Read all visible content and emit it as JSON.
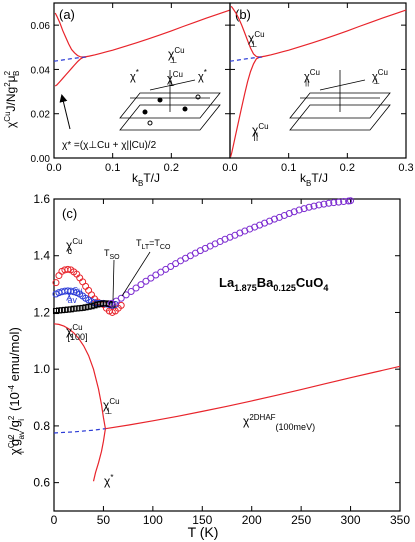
{
  "colors": {
    "red": "#e8242b",
    "blue": "#2b3bd6",
    "purple": "#7b2bd0",
    "black": "#000000"
  },
  "chart_data": [
    {
      "id": "a",
      "type": "line",
      "panel_label": "(a)",
      "xlabel_main": "k",
      "xlabel_sub1": "B",
      "xlabel_rest": "T/J",
      "ylabel_html": "χCuJ/Ng²μB²",
      "ylabel_parts": [
        "χ",
        "Cu",
        "J/Ng",
        "2",
        "μ",
        "2",
        "B"
      ],
      "xlim": [
        0,
        0.3
      ],
      "ylim": [
        0,
        0.07
      ],
      "xticks": [
        "0.0",
        "0.1",
        "0.2"
      ],
      "xtick_values": [
        0.0,
        0.1,
        0.2
      ],
      "yticks": [
        "0.00",
        "0.02",
        "0.04",
        "0.06"
      ],
      "ytick_values": [
        0.0,
        0.02,
        0.04,
        0.06
      ],
      "annotations": {
        "chi_perp": [
          "χ",
          "Cu",
          "⊥"
        ],
        "chi_star": [
          "χ",
          "*"
        ],
        "inset_chi_star": [
          "χ",
          "*"
        ],
        "formula": "χ* =(χ⊥Cu + χ||Cu)/2"
      },
      "series": [
        {
          "color": "red",
          "style": "solid",
          "x": [
            0.002,
            0.005,
            0.01,
            0.015,
            0.02,
            0.025,
            0.03,
            0.035,
            0.04,
            0.045,
            0.05,
            0.055,
            0.06,
            0.07,
            0.08,
            0.09,
            0.1,
            0.12,
            0.14,
            0.16,
            0.18,
            0.2,
            0.22,
            0.24,
            0.26,
            0.28,
            0.3
          ],
          "y": [
            0.0655,
            0.064,
            0.061,
            0.0575,
            0.0545,
            0.0515,
            0.049,
            0.0475,
            0.0463,
            0.0457,
            0.0456,
            0.0458,
            0.046,
            0.0466,
            0.0473,
            0.048,
            0.0487,
            0.0503,
            0.052,
            0.0537,
            0.0555,
            0.0574,
            0.0594,
            0.0613,
            0.0632,
            0.065,
            0.0668
          ]
        },
        {
          "color": "red",
          "style": "solid",
          "x": [
            0.002,
            0.005,
            0.01,
            0.015,
            0.02,
            0.025,
            0.03,
            0.035,
            0.04,
            0.045,
            0.05,
            0.055
          ],
          "y": [
            0.0325,
            0.033,
            0.0345,
            0.036,
            0.0375,
            0.039,
            0.0405,
            0.042,
            0.0435,
            0.0447,
            0.0455,
            0.0456
          ]
        },
        {
          "color": "blue",
          "style": "dashed",
          "x": [
            0.0,
            0.01,
            0.02,
            0.03,
            0.04,
            0.05,
            0.055
          ],
          "y": [
            0.0437,
            0.0441,
            0.0445,
            0.0449,
            0.0452,
            0.0455,
            0.0456
          ]
        }
      ]
    },
    {
      "id": "b",
      "type": "line",
      "panel_label": "(b)",
      "xlabel_main": "k",
      "xlabel_sub1": "B",
      "xlabel_rest": "T/J",
      "xlim": [
        0,
        0.3
      ],
      "ylim": [
        0,
        0.07
      ],
      "xticks": [
        "0.0",
        "0.1",
        "0.2",
        "0.3"
      ],
      "xtick_values": [
        0.0,
        0.1,
        0.2,
        0.3
      ],
      "annotations": {
        "chi_perp": [
          "χ",
          "Cu",
          "⊥"
        ],
        "chi_par": [
          "χ",
          "Cu",
          "||"
        ],
        "inset_chi_perp": [
          "χ",
          "Cu",
          "⊥"
        ]
      },
      "series": [
        {
          "color": "red",
          "style": "solid",
          "x": [
            0.002,
            0.005,
            0.01,
            0.015,
            0.02,
            0.025,
            0.03,
            0.035,
            0.04,
            0.045,
            0.05,
            0.055,
            0.06,
            0.07,
            0.08,
            0.09,
            0.1,
            0.12,
            0.14,
            0.16,
            0.18,
            0.2,
            0.22,
            0.24,
            0.26,
            0.28,
            0.3
          ],
          "y": [
            0.0685,
            0.0675,
            0.0655,
            0.063,
            0.06,
            0.0565,
            0.053,
            0.0497,
            0.047,
            0.0458,
            0.0456,
            0.0458,
            0.046,
            0.0466,
            0.0473,
            0.048,
            0.0487,
            0.0503,
            0.052,
            0.0537,
            0.0555,
            0.0574,
            0.0594,
            0.0613,
            0.0632,
            0.065,
            0.0668
          ]
        },
        {
          "color": "red",
          "style": "solid",
          "x": [
            0.001,
            0.003,
            0.006,
            0.01,
            0.015,
            0.02,
            0.025,
            0.03,
            0.035,
            0.04,
            0.045,
            0.05,
            0.055
          ],
          "y": [
            0.0005,
            0.0025,
            0.006,
            0.011,
            0.017,
            0.023,
            0.029,
            0.0345,
            0.039,
            0.0425,
            0.0448,
            0.0455,
            0.0456
          ]
        },
        {
          "color": "blue",
          "style": "dashed",
          "x": [
            0.0,
            0.01,
            0.02,
            0.03,
            0.04,
            0.05,
            0.055
          ],
          "y": [
            0.0437,
            0.0441,
            0.0445,
            0.0449,
            0.0452,
            0.0455,
            0.0456
          ]
        }
      ]
    },
    {
      "id": "c",
      "type": "scatter",
      "panel_label": "(c)",
      "xlabel": "T  (K)",
      "ylabel_parts": [
        "χ",
        "Cu",
        "i",
        "g",
        "2",
        "av",
        "/g",
        "2",
        "i",
        "(10",
        "-4",
        " emu/mol)"
      ],
      "xlim": [
        0,
        350
      ],
      "ylim": [
        0.5,
        1.6
      ],
      "xticks": [
        "0",
        "50",
        "100",
        "150",
        "200",
        "250",
        "300",
        "350"
      ],
      "xtick_values": [
        0,
        50,
        100,
        150,
        200,
        250,
        300,
        350
      ],
      "yticks": [
        "0.6",
        "0.8",
        "1.0",
        "1.2",
        "1.4",
        "1.6"
      ],
      "ytick_values": [
        0.6,
        0.8,
        1.0,
        1.2,
        1.4,
        1.6
      ],
      "compound": [
        "La",
        "1.875",
        "Ba",
        "0.125",
        "CuO",
        "4"
      ],
      "annotations": {
        "chi_c": [
          "χ",
          "Cu",
          "c"
        ],
        "chi_av": [
          "χ",
          "Cu",
          "av"
        ],
        "chi_100": [
          "χ",
          "Cu",
          "[100]"
        ],
        "t_so": [
          "T",
          "SO"
        ],
        "t_lt_co": [
          "T",
          "LT",
          "=T",
          "CO"
        ],
        "chi_perp": [
          "χ",
          "Cu",
          "⊥"
        ],
        "chi_star": [
          "χ",
          "*"
        ],
        "chi_2dhaf": [
          "χ",
          "2DHAF",
          "(100meV)"
        ]
      },
      "series": [
        {
          "name": "χcCu",
          "marker": "circle",
          "color": "red",
          "x": [
            2,
            5,
            8,
            11,
            14,
            17,
            20,
            23,
            26,
            29,
            32,
            35,
            38,
            41,
            44,
            47,
            50,
            53,
            56,
            59,
            62,
            65,
            68
          ],
          "y": [
            1.305,
            1.33,
            1.345,
            1.35,
            1.352,
            1.35,
            1.343,
            1.335,
            1.322,
            1.308,
            1.292,
            1.278,
            1.262,
            1.248,
            1.237,
            1.232,
            1.228,
            1.215,
            1.205,
            1.2,
            1.205,
            1.215,
            1.225
          ]
        },
        {
          "name": "χavCu",
          "marker": "circle",
          "color": "blue",
          "x": [
            2,
            5,
            8,
            11,
            14,
            17,
            20,
            23,
            26,
            29,
            32,
            35,
            38,
            41,
            44,
            47,
            50,
            53,
            56,
            59,
            62
          ],
          "y": [
            1.265,
            1.27,
            1.273,
            1.275,
            1.276,
            1.275,
            1.273,
            1.27,
            1.265,
            1.258,
            1.25,
            1.244,
            1.238,
            1.234,
            1.232,
            1.232,
            1.232,
            1.23,
            1.228,
            1.225,
            1.228
          ]
        },
        {
          "name": "χ[100]Cu",
          "marker": "square",
          "color": "black",
          "x": [
            2,
            5,
            8,
            11,
            14,
            17,
            20,
            23,
            26,
            29,
            32,
            35,
            38,
            41,
            44,
            47,
            50,
            53,
            56,
            59
          ],
          "y": [
            1.205,
            1.207,
            1.208,
            1.209,
            1.21,
            1.211,
            1.213,
            1.214,
            1.215,
            1.216,
            1.218,
            1.22,
            1.222,
            1.225,
            1.228,
            1.23,
            1.232,
            1.232,
            1.23,
            1.228
          ]
        },
        {
          "name": "high-T (overlapping)",
          "marker": "circle",
          "color": "purple",
          "x": [
            58,
            63,
            68,
            73,
            78,
            83,
            88,
            93,
            98,
            103,
            108,
            113,
            118,
            123,
            128,
            133,
            138,
            143,
            148,
            153,
            158,
            163,
            168,
            173,
            178,
            183,
            188,
            193,
            198,
            203,
            208,
            213,
            218,
            223,
            228,
            233,
            238,
            243,
            248,
            253,
            258,
            263,
            268,
            273,
            278,
            283,
            288,
            293,
            298,
            300
          ],
          "y": [
            1.232,
            1.24,
            1.25,
            1.262,
            1.274,
            1.286,
            1.298,
            1.31,
            1.321,
            1.332,
            1.342,
            1.352,
            1.362,
            1.372,
            1.382,
            1.391,
            1.4,
            1.409,
            1.418,
            1.426,
            1.434,
            1.442,
            1.45,
            1.458,
            1.465,
            1.472,
            1.48,
            1.487,
            1.494,
            1.501,
            1.508,
            1.515,
            1.522,
            1.529,
            1.535,
            1.542,
            1.549,
            1.555,
            1.561,
            1.566,
            1.571,
            1.575,
            1.579,
            1.582,
            1.585,
            1.587,
            1.589,
            1.591,
            1.593,
            1.594
          ]
        },
        {
          "name": "χ⊥Cu model (upper)",
          "marker": "none",
          "color": "red",
          "style": "solid",
          "x": [
            0,
            5,
            10,
            15,
            20,
            25,
            30,
            35,
            40,
            45,
            48,
            50,
            52
          ],
          "y": [
            1.16,
            1.158,
            1.152,
            1.142,
            1.128,
            1.108,
            1.082,
            1.048,
            1.0,
            0.93,
            0.875,
            0.83,
            0.79
          ]
        },
        {
          "name": "χ* model (lower)",
          "marker": "none",
          "color": "red",
          "style": "solid",
          "x": [
            52,
            50,
            48,
            45,
            42,
            40
          ],
          "y": [
            0.79,
            0.745,
            0.71,
            0.67,
            0.635,
            0.605
          ]
        },
        {
          "name": "χ2DHAF(100meV)",
          "marker": "none",
          "color": "red",
          "style": "solid",
          "x": [
            52,
            75,
            100,
            125,
            150,
            175,
            200,
            225,
            250,
            275,
            300,
            325,
            350
          ],
          "y": [
            0.79,
            0.803,
            0.818,
            0.834,
            0.851,
            0.869,
            0.888,
            0.908,
            0.928,
            0.949,
            0.97,
            0.99,
            1.01
          ]
        },
        {
          "name": "extrapolation",
          "marker": "none",
          "color": "blue",
          "style": "dashed",
          "x": [
            0,
            10,
            20,
            30,
            40,
            52
          ],
          "y": [
            0.775,
            0.777,
            0.779,
            0.782,
            0.785,
            0.79
          ]
        }
      ]
    }
  ]
}
